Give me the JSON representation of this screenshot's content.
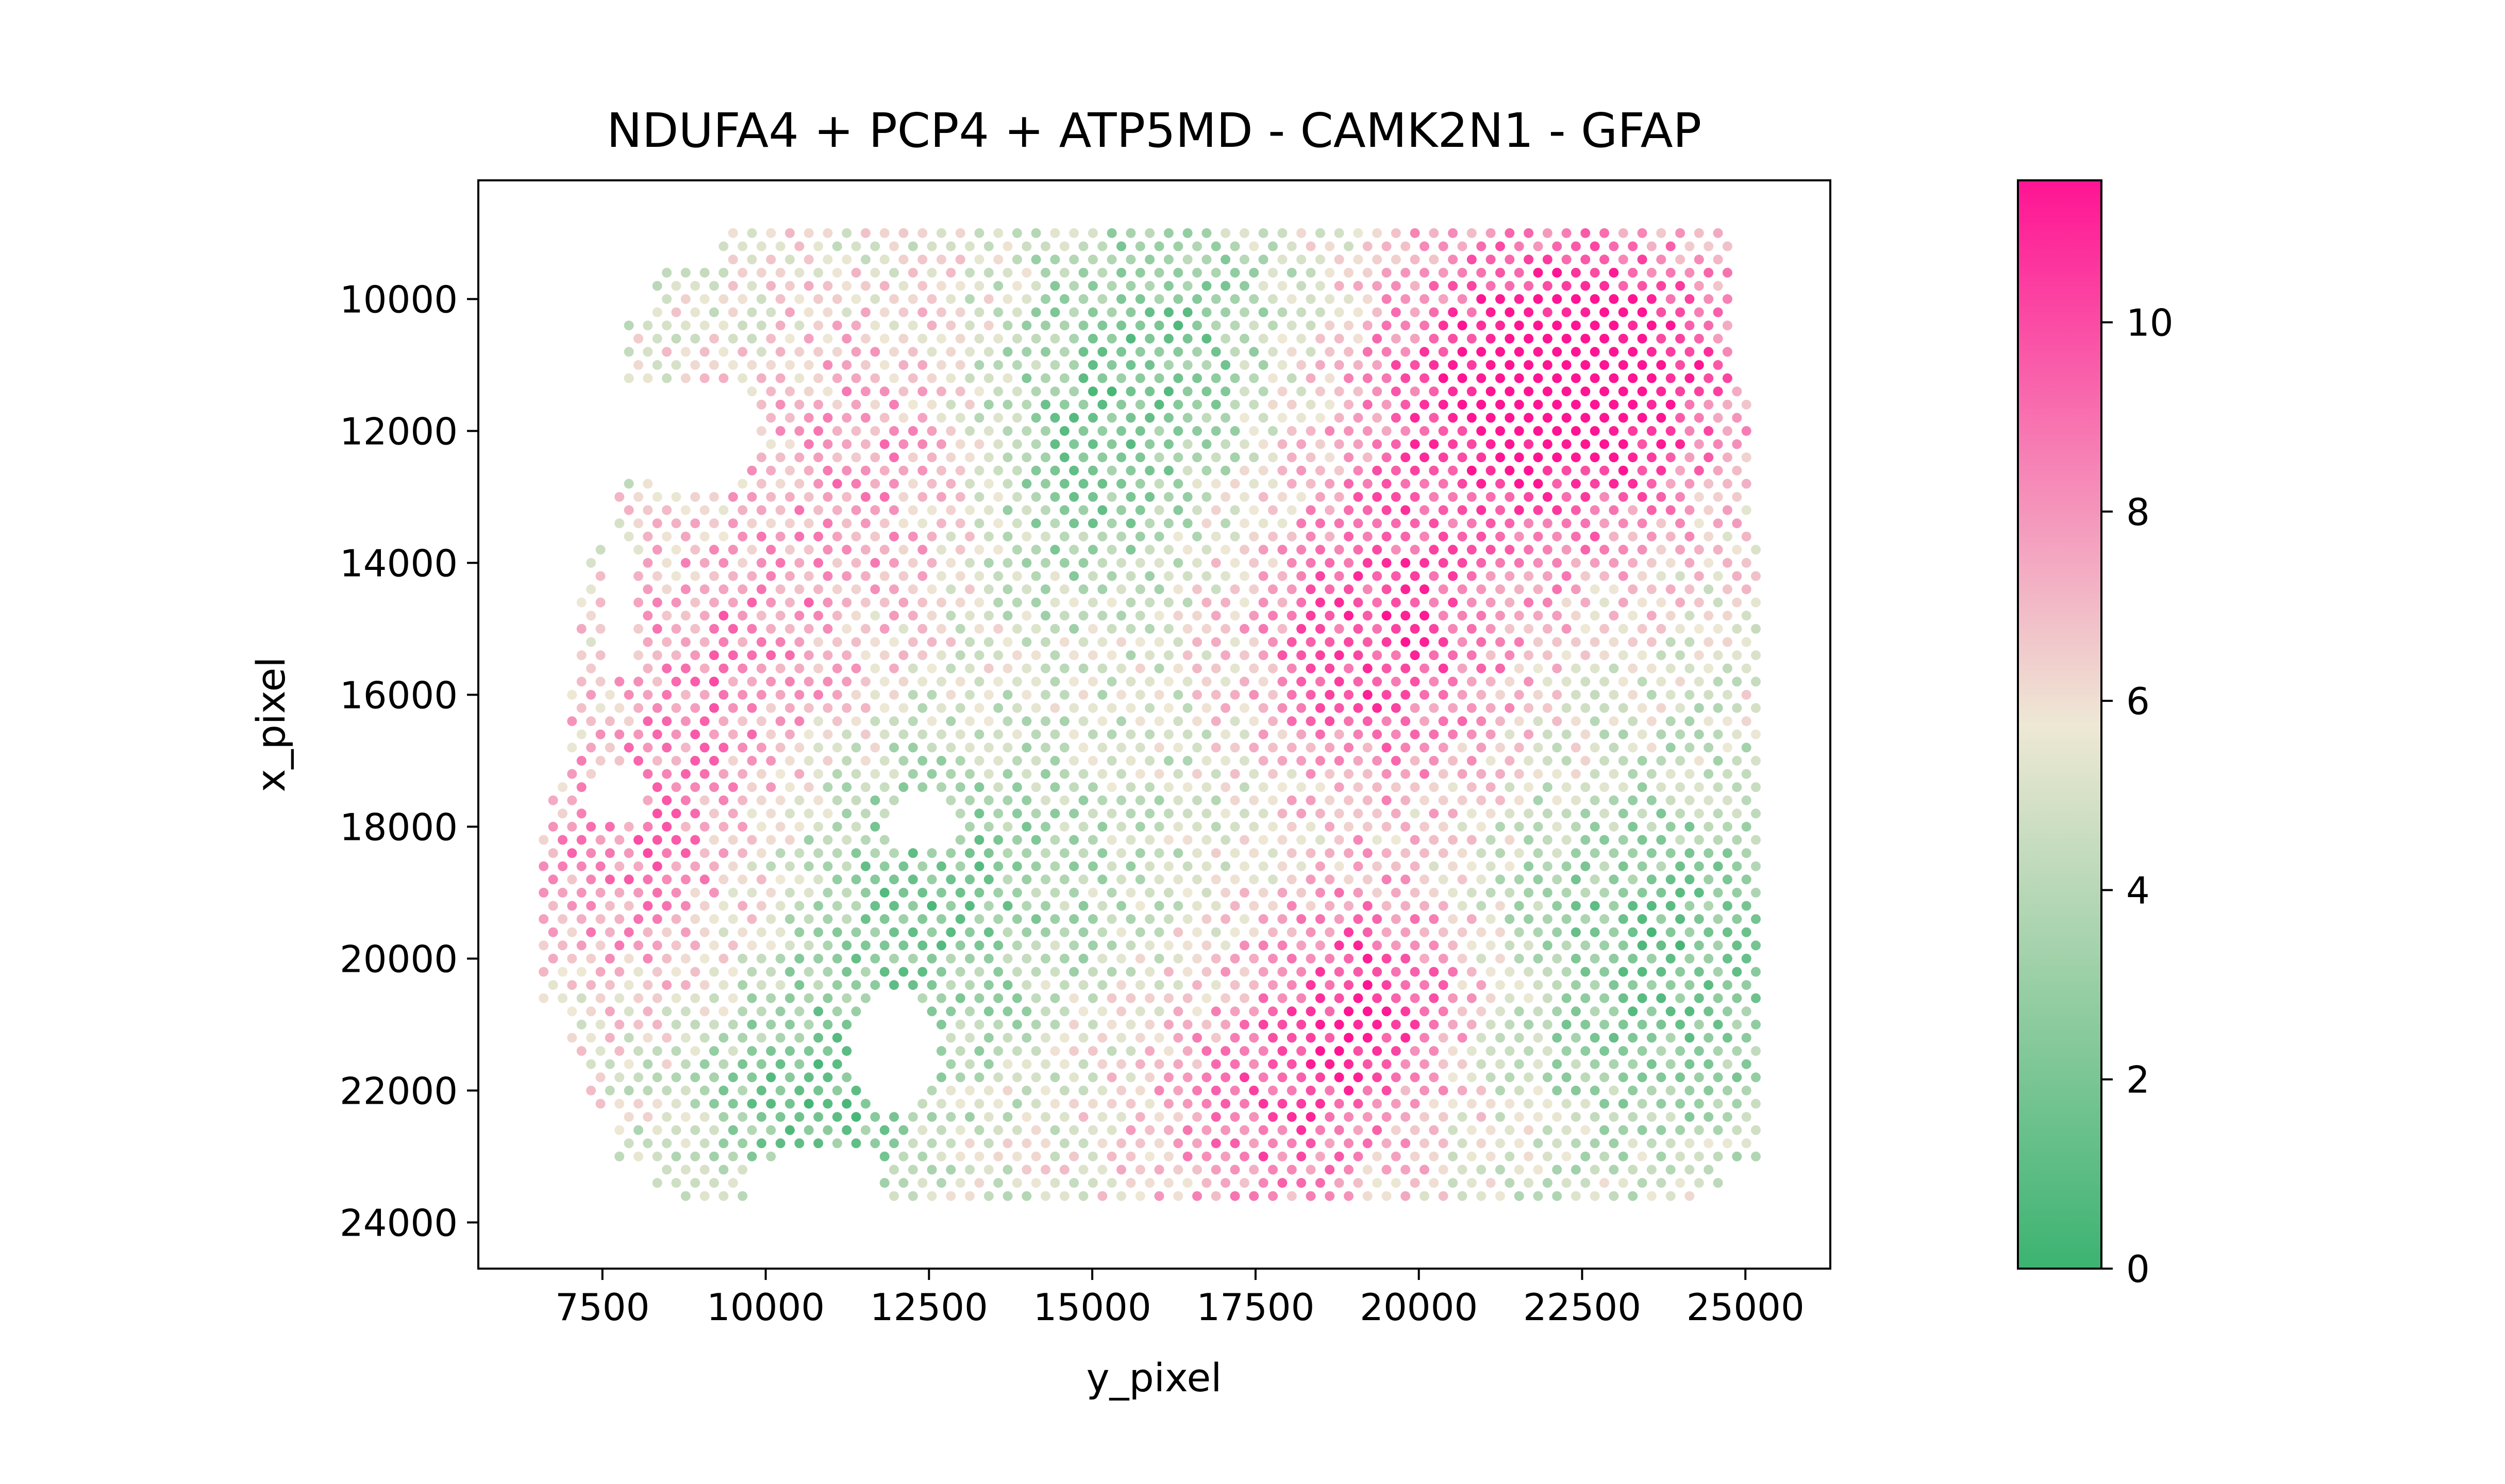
{
  "chart_data": {
    "type": "scatter",
    "title": "NDUFA4 + PCP4 + ATP5MD - CAMK2N1 - GFAP",
    "xlabel": "y_pixel",
    "ylabel": "x_pixel",
    "xlim": [
      5600,
      26300
    ],
    "ylim": [
      24700,
      8200
    ],
    "y_inverted": true,
    "x_ticks": [
      7500,
      10000,
      12500,
      15000,
      17500,
      20000,
      22500,
      25000
    ],
    "x_tick_labels": [
      "7500",
      "10000",
      "12500",
      "15000",
      "17500",
      "20000",
      "22500",
      "25000"
    ],
    "y_ticks": [
      10000,
      12000,
      14000,
      16000,
      18000,
      20000,
      22000,
      24000
    ],
    "y_tick_labels": [
      "10000",
      "12000",
      "14000",
      "16000",
      "18000",
      "20000",
      "22000",
      "24000"
    ],
    "grid": false,
    "colorbar": {
      "vmin": 0,
      "vmax": 11.5,
      "ticks": [
        0,
        2,
        4,
        6,
        8,
        10
      ],
      "tick_labels": [
        "0",
        "2",
        "4",
        "6",
        "8",
        "10"
      ],
      "colors": [
        "#3cb371",
        "#eee8d5",
        "#ff1493"
      ]
    },
    "spot_grid": {
      "row_start": 9000,
      "row_step": 200,
      "row_count": 74,
      "col_start": 6600,
      "col_step": 290,
      "col_count": 65,
      "odd_row_offset": 145
    },
    "value_hotspots": [
      {
        "x": 21300,
        "y": 11500,
        "value": 10.5,
        "spread": 2600
      },
      {
        "x": 23200,
        "y": 11000,
        "value": 10.0,
        "spread": 2000
      },
      {
        "x": 19300,
        "y": 15400,
        "value": 10.0,
        "spread": 2200
      },
      {
        "x": 19300,
        "y": 20500,
        "value": 10.2,
        "spread": 1800
      },
      {
        "x": 17700,
        "y": 22500,
        "value": 9.0,
        "spread": 1900
      },
      {
        "x": 12000,
        "y": 12500,
        "value": 8.6,
        "spread": 2300
      },
      {
        "x": 8000,
        "y": 18500,
        "value": 8.6,
        "spread": 2000
      },
      {
        "x": 9500,
        "y": 15500,
        "value": 8.4,
        "spread": 1900
      },
      {
        "x": 14500,
        "y": 12500,
        "value": 1.8,
        "spread": 2200
      },
      {
        "x": 12500,
        "y": 19000,
        "value": 1.9,
        "spread": 2300
      },
      {
        "x": 10700,
        "y": 22200,
        "value": 1.6,
        "spread": 1700
      },
      {
        "x": 23700,
        "y": 20000,
        "value": 1.7,
        "spread": 2700
      },
      {
        "x": 16300,
        "y": 10200,
        "value": 2.6,
        "spread": 1900
      },
      {
        "x": 16500,
        "y": 17500,
        "value": 4.5,
        "spread": 2000
      }
    ],
    "base_value": 5.4
  }
}
